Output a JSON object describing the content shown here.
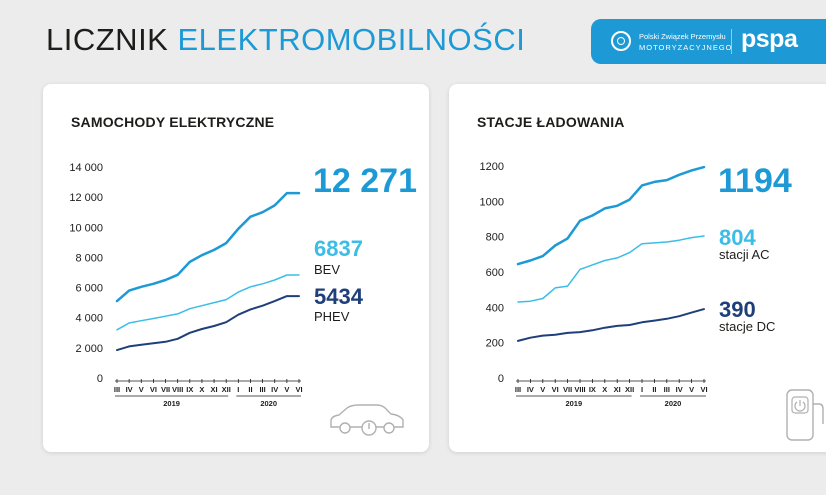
{
  "header": {
    "title_part1": "LICZNIK",
    "title_part2": "ELEKTROMOBILNOŚCI",
    "org_line1": "Polski Związek Przemysłu",
    "org_line2": "MOTORYZACYJNEGO",
    "brand": "pspa"
  },
  "colors": {
    "accent": "#1d9ad6",
    "light": "#3bbde8",
    "dark": "#1e3f7a",
    "text": "#1d1d1b"
  },
  "cards": [
    {
      "title": "SAMOCHODY ELEKTRYCZNE",
      "total_value": "12 271",
      "series_a_value": "6837",
      "series_a_label": "BEV",
      "series_b_value": "5434",
      "series_b_label": "PHEV",
      "icon": "car-charging-icon"
    },
    {
      "title": "STACJE ŁADOWANIA",
      "total_value": "1194",
      "series_a_value": "804",
      "series_a_label": "stacji AC",
      "series_b_value": "390",
      "series_b_label": "stacje DC",
      "icon": "charging-station-icon"
    }
  ],
  "chart_data": [
    {
      "type": "line",
      "title": "SAMOCHODY ELEKTRYCZNE",
      "x": [
        "III",
        "IV",
        "V",
        "VI",
        "VII",
        "VIII",
        "IX",
        "X",
        "XI",
        "XII",
        "I",
        "II",
        "III",
        "IV",
        "V",
        "VI"
      ],
      "year_groups": [
        {
          "label": "2019",
          "from": 0,
          "to": 9
        },
        {
          "label": "2020",
          "from": 10,
          "to": 15
        }
      ],
      "ylim": [
        0,
        14000
      ],
      "yticks": [
        0,
        2000,
        4000,
        6000,
        8000,
        10000,
        12000,
        14000
      ],
      "ytick_labels": [
        "0",
        "2 000",
        "4 000",
        "6 000",
        "8 000",
        "10 000",
        "12 000",
        "14 000"
      ],
      "grid": false,
      "series": [
        {
          "name": "total",
          "color": "#1d9ad6",
          "width": 2.5,
          "values": [
            5100,
            5800,
            6050,
            6250,
            6500,
            6850,
            7700,
            8150,
            8500,
            8950,
            9900,
            10700,
            11000,
            11450,
            12271,
            12271
          ]
        },
        {
          "name": "BEV",
          "color": "#3bbde8",
          "width": 1.5,
          "values": [
            3200,
            3650,
            3800,
            3950,
            4100,
            4250,
            4600,
            4800,
            5000,
            5200,
            5700,
            6050,
            6250,
            6500,
            6837,
            6837
          ]
        },
        {
          "name": "PHEV",
          "color": "#1e3f7a",
          "width": 2,
          "values": [
            1850,
            2100,
            2200,
            2300,
            2400,
            2600,
            3000,
            3250,
            3450,
            3700,
            4200,
            4550,
            4800,
            5100,
            5434,
            5434
          ]
        }
      ]
    },
    {
      "type": "line",
      "title": "STACJE ŁADOWANIA",
      "x": [
        "III",
        "IV",
        "V",
        "VI",
        "VII",
        "VIII",
        "IX",
        "X",
        "XI",
        "XII",
        "I",
        "II",
        "III",
        "IV",
        "V",
        "VI"
      ],
      "year_groups": [
        {
          "label": "2019",
          "from": 0,
          "to": 9
        },
        {
          "label": "2020",
          "from": 10,
          "to": 15
        }
      ],
      "ylim": [
        0,
        1200
      ],
      "yticks": [
        0,
        200,
        400,
        600,
        800,
        1000,
        1200
      ],
      "ytick_labels": [
        "0",
        "200",
        "400",
        "600",
        "800",
        "1000",
        "1200"
      ],
      "grid": false,
      "series": [
        {
          "name": "total",
          "color": "#1d9ad6",
          "width": 2.5,
          "values": [
            645,
            665,
            690,
            750,
            790,
            890,
            920,
            960,
            975,
            1010,
            1090,
            1110,
            1120,
            1150,
            1175,
            1194
          ]
        },
        {
          "name": "AC",
          "color": "#3bbde8",
          "width": 1.5,
          "values": [
            430,
            435,
            450,
            510,
            520,
            615,
            640,
            665,
            680,
            710,
            760,
            765,
            770,
            780,
            795,
            804
          ]
        },
        {
          "name": "DC",
          "color": "#1e3f7a",
          "width": 2,
          "values": [
            210,
            228,
            240,
            245,
            255,
            260,
            270,
            285,
            295,
            300,
            315,
            325,
            335,
            350,
            370,
            390
          ]
        }
      ]
    }
  ]
}
